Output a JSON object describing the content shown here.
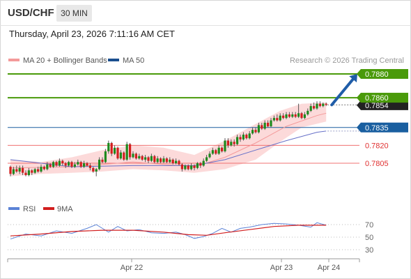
{
  "header": {
    "symbol": "USD/CHF",
    "timeframe": "30 MIN"
  },
  "datetime": "Thursday, April 23, 2026 7:11:16 AM CET",
  "legend": {
    "ma20_label": "MA 20 + Bollinger Bands",
    "ma50_label": "MA 50",
    "rsi_label": "RSI",
    "rsi_ma_label": "9MA"
  },
  "copyright": "Research © 2026 Trading Central",
  "colors": {
    "up": "#1e8a1e",
    "down": "#d21e1e",
    "band": "#fbd4d4",
    "ma20": "#f49a9a",
    "ma50": "#6670c8",
    "resistance": "#4a9a0a",
    "support_blue": "#1a5fa0",
    "support_red": "#f07070",
    "arrow": "#1f5da8",
    "current": "#222222",
    "rsi": "#5b82d6",
    "rsi_ma": "#d21e1e"
  },
  "chart_data": [
    {
      "type": "line",
      "subtype": "candlestick",
      "y_range": [
        1.0,
        76.3
      ],
      "x_labels": [
        "Apr 22",
        "Apr 23",
        "Apr 24"
      ],
      "current_price": "0.7854",
      "levels": [
        {
          "value": "0.7880",
          "kind": "resistance"
        },
        {
          "value": "0.7860",
          "kind": "resistance"
        },
        {
          "value": "0.7835",
          "kind": "support_blue"
        },
        {
          "value": "0.7820",
          "kind": "support_red"
        },
        {
          "value": "0.7805",
          "kind": "support_red"
        }
      ],
      "candles": [
        [
          0.7802,
          0.7796,
          0.7803,
          0.7794
        ],
        [
          0.7796,
          0.78,
          0.7802,
          0.7795
        ],
        [
          0.78,
          0.7798,
          0.7803,
          0.7797
        ],
        [
          0.7798,
          0.7801,
          0.7803,
          0.7796
        ],
        [
          0.7801,
          0.7797,
          0.7803,
          0.7795
        ],
        [
          0.7797,
          0.7795,
          0.7799,
          0.7794
        ],
        [
          0.7795,
          0.7799,
          0.7801,
          0.7794
        ],
        [
          0.7799,
          0.7797,
          0.78,
          0.7795
        ],
        [
          0.7797,
          0.78,
          0.7801,
          0.7796
        ],
        [
          0.78,
          0.7798,
          0.7802,
          0.7797
        ],
        [
          0.7798,
          0.7802,
          0.7804,
          0.7797
        ],
        [
          0.7802,
          0.78,
          0.7803,
          0.7799
        ],
        [
          0.78,
          0.7804,
          0.7806,
          0.7799
        ],
        [
          0.7804,
          0.7802,
          0.7805,
          0.7801
        ],
        [
          0.7802,
          0.7806,
          0.7807,
          0.7801
        ],
        [
          0.7806,
          0.7803,
          0.7807,
          0.7802
        ],
        [
          0.7803,
          0.7807,
          0.7809,
          0.7802
        ],
        [
          0.7807,
          0.7805,
          0.7808,
          0.7803
        ],
        [
          0.7805,
          0.7803,
          0.7806,
          0.7801
        ],
        [
          0.7803,
          0.7806,
          0.7807,
          0.7802
        ],
        [
          0.7806,
          0.7802,
          0.7807,
          0.7801
        ],
        [
          0.7802,
          0.7804,
          0.7806,
          0.7801
        ],
        [
          0.7804,
          0.7806,
          0.7808,
          0.7803
        ],
        [
          0.7806,
          0.7802,
          0.7807,
          0.7801
        ],
        [
          0.7802,
          0.7805,
          0.7807,
          0.7801
        ],
        [
          0.7805,
          0.7803,
          0.7806,
          0.7802
        ],
        [
          0.7803,
          0.7801,
          0.7805,
          0.7799
        ],
        [
          0.7801,
          0.7798,
          0.7802,
          0.7797
        ],
        [
          0.7798,
          0.78,
          0.7801,
          0.7794
        ],
        [
          0.78,
          0.7808,
          0.781,
          0.7799
        ],
        [
          0.7808,
          0.7806,
          0.781,
          0.7805
        ],
        [
          0.7806,
          0.7815,
          0.7817,
          0.7805
        ],
        [
          0.7815,
          0.7822,
          0.7824,
          0.7813
        ],
        [
          0.7822,
          0.7813,
          0.7823,
          0.7811
        ],
        [
          0.7813,
          0.7818,
          0.782,
          0.7812
        ],
        [
          0.7818,
          0.7809,
          0.7819,
          0.7808
        ],
        [
          0.7809,
          0.7814,
          0.7816,
          0.7808
        ],
        [
          0.7814,
          0.7808,
          0.7815,
          0.7807
        ],
        [
          0.7808,
          0.7821,
          0.7823,
          0.7807
        ],
        [
          0.7821,
          0.781,
          0.7822,
          0.7808
        ],
        [
          0.781,
          0.7813,
          0.7815,
          0.7809
        ],
        [
          0.7813,
          0.7809,
          0.7814,
          0.7808
        ],
        [
          0.7809,
          0.7811,
          0.7813,
          0.7808
        ],
        [
          0.7811,
          0.7808,
          0.7812,
          0.7807
        ],
        [
          0.7808,
          0.781,
          0.7812,
          0.7806
        ],
        [
          0.781,
          0.7807,
          0.7811,
          0.7805
        ],
        [
          0.7807,
          0.7811,
          0.7813,
          0.7806
        ],
        [
          0.7811,
          0.7806,
          0.7812,
          0.7805
        ],
        [
          0.7806,
          0.7809,
          0.7811,
          0.7805
        ],
        [
          0.7809,
          0.7806,
          0.781,
          0.7805
        ],
        [
          0.7806,
          0.7809,
          0.7811,
          0.7805
        ],
        [
          0.7809,
          0.7806,
          0.781,
          0.7805
        ],
        [
          0.7806,
          0.7808,
          0.781,
          0.7805
        ],
        [
          0.7808,
          0.7805,
          0.7809,
          0.7804
        ],
        [
          0.7805,
          0.7807,
          0.7809,
          0.7804
        ],
        [
          0.7807,
          0.7804,
          0.7808,
          0.7803
        ],
        [
          0.7804,
          0.78,
          0.7805,
          0.7798
        ],
        [
          0.78,
          0.7803,
          0.7804,
          0.7799
        ],
        [
          0.7803,
          0.78,
          0.7804,
          0.7799
        ],
        [
          0.78,
          0.7803,
          0.7805,
          0.7799
        ],
        [
          0.7803,
          0.7801,
          0.7804,
          0.7799
        ],
        [
          0.7801,
          0.7805,
          0.7806,
          0.78
        ],
        [
          0.7805,
          0.7803,
          0.7806,
          0.7801
        ],
        [
          0.7803,
          0.7807,
          0.7809,
          0.7802
        ],
        [
          0.7807,
          0.781,
          0.7812,
          0.7806
        ],
        [
          0.781,
          0.7813,
          0.7815,
          0.7809
        ],
        [
          0.7813,
          0.7816,
          0.7818,
          0.7812
        ],
        [
          0.7816,
          0.7813,
          0.7817,
          0.7812
        ],
        [
          0.7813,
          0.7818,
          0.782,
          0.7812
        ],
        [
          0.7818,
          0.7815,
          0.7819,
          0.7814
        ],
        [
          0.7815,
          0.7824,
          0.7826,
          0.7814
        ],
        [
          0.7824,
          0.782,
          0.7826,
          0.7818
        ],
        [
          0.782,
          0.7823,
          0.7825,
          0.7819
        ],
        [
          0.7823,
          0.7821,
          0.7825,
          0.7819
        ],
        [
          0.7821,
          0.7827,
          0.7829,
          0.782
        ],
        [
          0.7827,
          0.7825,
          0.7829,
          0.7823
        ],
        [
          0.7825,
          0.7829,
          0.7831,
          0.7824
        ],
        [
          0.7829,
          0.7826,
          0.783,
          0.7825
        ],
        [
          0.7826,
          0.783,
          0.7832,
          0.7825
        ],
        [
          0.783,
          0.7833,
          0.7835,
          0.7829
        ],
        [
          0.7833,
          0.7831,
          0.7835,
          0.783
        ],
        [
          0.7831,
          0.7837,
          0.7839,
          0.783
        ],
        [
          0.7837,
          0.7834,
          0.7839,
          0.7833
        ],
        [
          0.7834,
          0.7839,
          0.7841,
          0.7833
        ],
        [
          0.7839,
          0.7836,
          0.7841,
          0.7835
        ],
        [
          0.7836,
          0.7841,
          0.7843,
          0.7835
        ],
        [
          0.7841,
          0.7843,
          0.7845,
          0.784
        ],
        [
          0.7843,
          0.7841,
          0.7846,
          0.784
        ],
        [
          0.7841,
          0.7845,
          0.7847,
          0.784
        ],
        [
          0.7845,
          0.7843,
          0.7847,
          0.7842
        ],
        [
          0.7843,
          0.7846,
          0.7848,
          0.7842
        ],
        [
          0.7846,
          0.7844,
          0.7848,
          0.7843
        ],
        [
          0.7844,
          0.7846,
          0.7848,
          0.7843
        ],
        [
          0.7846,
          0.7844,
          0.7848,
          0.7843
        ],
        [
          0.7844,
          0.7847,
          0.7855,
          0.7843
        ],
        [
          0.7847,
          0.7843,
          0.7848,
          0.7842
        ],
        [
          0.7843,
          0.7846,
          0.7848,
          0.7842
        ],
        [
          0.7846,
          0.7849,
          0.7851,
          0.7845
        ],
        [
          0.7849,
          0.7853,
          0.7855,
          0.7848
        ],
        [
          0.7853,
          0.7851,
          0.7856,
          0.785
        ],
        [
          0.7851,
          0.7855,
          0.7857,
          0.785
        ],
        [
          0.7855,
          0.7853,
          0.7857,
          0.7852
        ],
        [
          0.7853,
          0.7855,
          0.7856,
          0.7852
        ],
        [
          0.7855,
          0.7854,
          0.7856,
          0.7853
        ]
      ],
      "ma20": [
        [
          0,
          0.7801
        ],
        [
          20,
          0.7802
        ],
        [
          40,
          0.7806
        ],
        [
          60,
          0.7802
        ],
        [
          70,
          0.781
        ],
        [
          80,
          0.7822
        ],
        [
          90,
          0.7836
        ],
        [
          100,
          0.7845
        ],
        [
          103,
          0.7847
        ]
      ],
      "ma50": [
        [
          0,
          0.7808
        ],
        [
          20,
          0.7802
        ],
        [
          40,
          0.7803
        ],
        [
          60,
          0.7803
        ],
        [
          70,
          0.7808
        ],
        [
          80,
          0.7816
        ],
        [
          90,
          0.7824
        ],
        [
          100,
          0.7831
        ],
        [
          103,
          0.7832
        ]
      ],
      "bollinger_upper": [
        [
          0,
          0.7808
        ],
        [
          10,
          0.7806
        ],
        [
          20,
          0.781
        ],
        [
          30,
          0.7816
        ],
        [
          40,
          0.782
        ],
        [
          50,
          0.7818
        ],
        [
          60,
          0.7812
        ],
        [
          70,
          0.7824
        ],
        [
          80,
          0.7838
        ],
        [
          88,
          0.7849
        ],
        [
          95,
          0.7855
        ],
        [
          103,
          0.7856
        ]
      ],
      "bollinger_lower": [
        [
          0,
          0.7794
        ],
        [
          10,
          0.7796
        ],
        [
          20,
          0.7797
        ],
        [
          30,
          0.7798
        ],
        [
          40,
          0.78
        ],
        [
          50,
          0.7799
        ],
        [
          60,
          0.7797
        ],
        [
          70,
          0.78
        ],
        [
          80,
          0.7808
        ],
        [
          88,
          0.7823
        ],
        [
          95,
          0.7835
        ],
        [
          103,
          0.784
        ]
      ],
      "projection_arrow_to": "0.7880"
    },
    {
      "type": "line",
      "title": "RSI",
      "y_ticks": [
        "70",
        "50",
        "30"
      ],
      "y_range": [
        20,
        80
      ],
      "rsi": [
        [
          0,
          47
        ],
        [
          5,
          55
        ],
        [
          10,
          52
        ],
        [
          15,
          60
        ],
        [
          20,
          56
        ],
        [
          25,
          64
        ],
        [
          28,
          70
        ],
        [
          32,
          58
        ],
        [
          35,
          67
        ],
        [
          38,
          60
        ],
        [
          42,
          62
        ],
        [
          46,
          57
        ],
        [
          50,
          56
        ],
        [
          54,
          58
        ],
        [
          57,
          54
        ],
        [
          60,
          48
        ],
        [
          63,
          51
        ],
        [
          66,
          56
        ],
        [
          69,
          64
        ],
        [
          72,
          58
        ],
        [
          75,
          64
        ],
        [
          78,
          66
        ],
        [
          82,
          70
        ],
        [
          86,
          72
        ],
        [
          90,
          71
        ],
        [
          94,
          69
        ],
        [
          98,
          66
        ],
        [
          100,
          73
        ],
        [
          103,
          69
        ]
      ],
      "rsi_ma": [
        [
          0,
          52
        ],
        [
          10,
          55
        ],
        [
          20,
          59
        ],
        [
          30,
          61
        ],
        [
          40,
          61
        ],
        [
          50,
          58
        ],
        [
          58,
          54
        ],
        [
          64,
          53
        ],
        [
          70,
          57
        ],
        [
          78,
          62
        ],
        [
          86,
          67
        ],
        [
          94,
          69
        ],
        [
          103,
          69
        ]
      ]
    }
  ]
}
